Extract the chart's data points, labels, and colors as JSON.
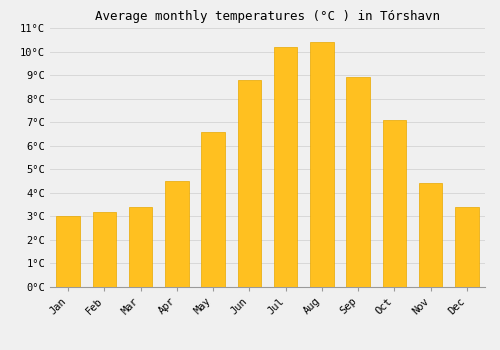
{
  "title": "Average monthly temperatures (°C ) in Tórshavn",
  "months": [
    "Jan",
    "Feb",
    "Mar",
    "Apr",
    "May",
    "Jun",
    "Jul",
    "Aug",
    "Sep",
    "Oct",
    "Nov",
    "Dec"
  ],
  "values": [
    3.0,
    3.2,
    3.4,
    4.5,
    6.6,
    8.8,
    10.2,
    10.4,
    8.9,
    7.1,
    4.4,
    3.4
  ],
  "bar_color": "#FFC020",
  "bar_edge_color": "#E8A800",
  "ylim": [
    0,
    11
  ],
  "yticks": [
    0,
    1,
    2,
    3,
    4,
    5,
    6,
    7,
    8,
    9,
    10,
    11
  ],
  "ytick_labels": [
    "0°C",
    "1°C",
    "2°C",
    "3°C",
    "4°C",
    "5°C",
    "6°C",
    "7°C",
    "8°C",
    "9°C",
    "10°C",
    "11°C"
  ],
  "background_color": "#f0f0f0",
  "grid_color": "#d8d8d8",
  "title_fontsize": 9,
  "tick_fontsize": 7.5,
  "font_family": "monospace",
  "bar_width": 0.65
}
